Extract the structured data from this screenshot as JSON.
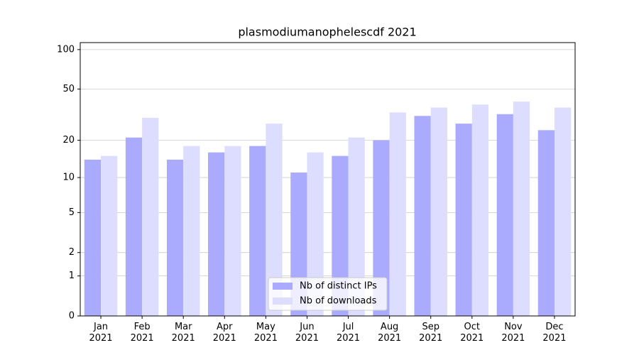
{
  "chart_data": {
    "type": "bar",
    "title": "plasmodiumanophelescdf 2021",
    "categories": [
      "Jan\n2021",
      "Feb\n2021",
      "Mar\n2021",
      "Apr\n2021",
      "May\n2021",
      "Jun\n2021",
      "Jul\n2021",
      "Aug\n2021",
      "Sep\n2021",
      "Oct\n2021",
      "Nov\n2021",
      "Dec\n2021"
    ],
    "series": [
      {
        "name": "Nb of distinct IPs",
        "color": "#aaaaff",
        "values": [
          14,
          21,
          14,
          16,
          18,
          11,
          15,
          20,
          31,
          27,
          32,
          24
        ]
      },
      {
        "name": "Nb of downloads",
        "color": "#ddddff",
        "values": [
          15,
          30,
          18,
          18,
          27,
          16,
          21,
          33,
          36,
          38,
          40,
          36
        ]
      }
    ],
    "yscale": "log1p",
    "ylim": [
      0,
      113
    ],
    "yticks": [
      0,
      1,
      2,
      5,
      10,
      20,
      50,
      100
    ],
    "grid": true,
    "legend": "lower center"
  }
}
